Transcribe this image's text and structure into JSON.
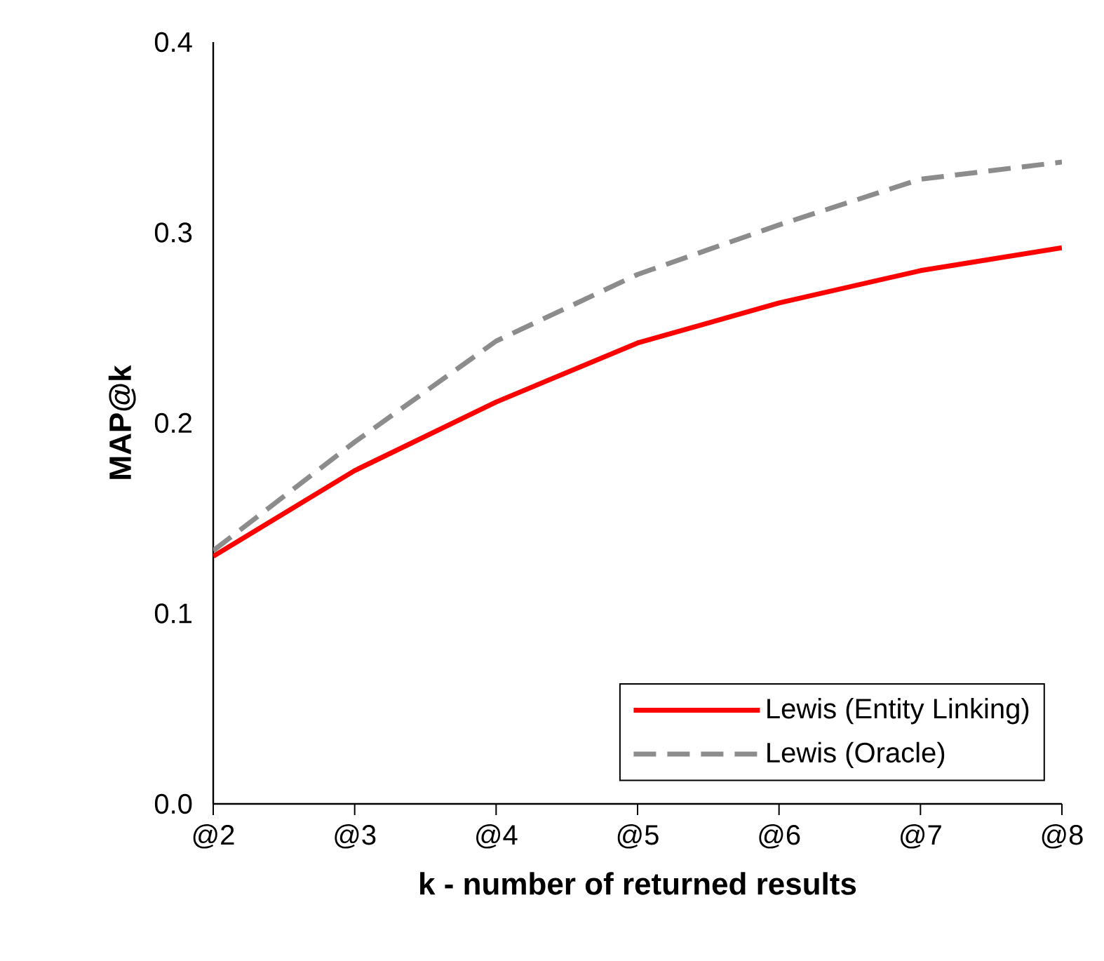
{
  "chart_data": {
    "type": "line",
    "xlabel": "k - number of returned results",
    "ylabel": "MAP@k",
    "categories": [
      "@2",
      "@3",
      "@4",
      "@5",
      "@6",
      "@7",
      "@8"
    ],
    "series": [
      {
        "name": "Lewis (Entity Linking)",
        "color": "#ff0000",
        "line_style": "solid",
        "values": [
          0.13,
          0.175,
          0.211,
          0.242,
          0.263,
          0.28,
          0.292
        ]
      },
      {
        "name": "Lewis (Oracle)",
        "color": "#8c8c8c",
        "line_style": "dashed",
        "values": [
          0.133,
          0.19,
          0.243,
          0.278,
          0.304,
          0.328,
          0.337
        ]
      }
    ],
    "ylim": [
      0.0,
      0.4
    ],
    "yticks": [
      {
        "value": 0.0,
        "label": "0.0"
      },
      0.1,
      0.2,
      0.3,
      0.4
    ],
    "grid": false,
    "legend": "bottom right",
    "marker": "none"
  }
}
